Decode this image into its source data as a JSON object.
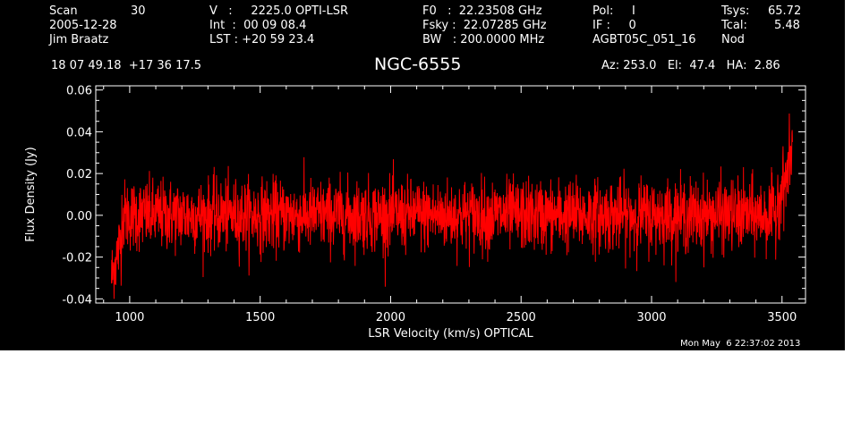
{
  "header": {
    "scan_label": "Scan",
    "scan_value": "30",
    "date": "2005-12-28",
    "observer": "Jim Braatz",
    "v_line": "V   :     2225.0 OPTI-LSR",
    "int_line": "Int  :  00 09 08.4",
    "lst_line": "LST : +20 59 23.4",
    "f0_line": "F0   :  22.23508 GHz",
    "fsky_line": "Fsky :  22.07285 GHz",
    "bw_line": "BW   : 200.0000 MHz",
    "pol_line": "Pol:     I",
    "if_line": "IF :     0",
    "project": "AGBT05C_051_16",
    "tsys_label": "Tsys:",
    "tsys_value": "65.72",
    "tcal_label": "Tcal:",
    "tcal_value": "5.48",
    "nod": "Nod",
    "coords": "18 07 49.18  +17 36 17.5",
    "source": "NGC-6555",
    "az_el_ha": "Az: 253.0   El:  47.4   HA:  2.86",
    "timestamp": "Mon May  6 22:37:02 2013"
  },
  "chart_data": {
    "type": "line",
    "xlabel": "LSR Velocity (km/s) OPTICAL",
    "ylabel": "Flux Density (Jy)",
    "xlim": [
      870,
      3590
    ],
    "ylim": [
      -0.042,
      0.062
    ],
    "x_ticks": [
      1000,
      1500,
      2000,
      2500,
      3000,
      3500
    ],
    "y_ticks": [
      -0.04,
      -0.02,
      0.0,
      0.02,
      0.04,
      0.06
    ],
    "y_tick_labels": [
      "-0.04",
      "-0.02",
      "0.00",
      "0.02",
      "0.04",
      "0.06"
    ],
    "series": [
      {
        "color": "#ff0000",
        "x_start": 930,
        "x_end": 3540,
        "n_points": 2600,
        "noise_rms": 0.0085,
        "edge_low": {
          "x": [
            930,
            950,
            970
          ],
          "y": [
            -0.03,
            -0.02,
            -0.01
          ]
        },
        "edge_high": {
          "x": [
            3480,
            3510,
            3530,
            3540
          ],
          "y": [
            0.008,
            0.015,
            0.025,
            0.035
          ]
        }
      }
    ]
  }
}
